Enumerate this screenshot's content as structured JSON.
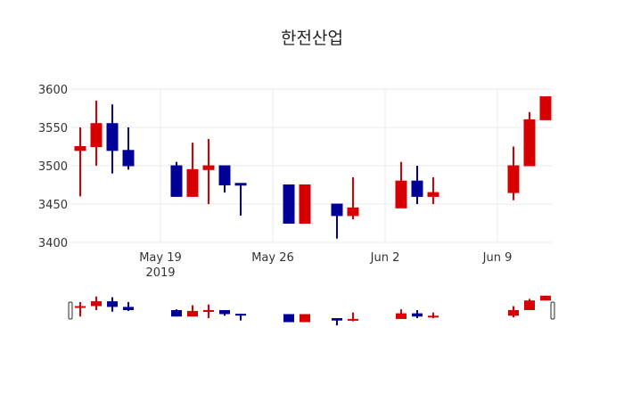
{
  "chart_data": {
    "type": "candlestick",
    "title": "한전산업",
    "xlabel": "",
    "ylabel": "",
    "ylim": [
      3400,
      3600
    ],
    "yticks": [
      3400,
      3450,
      3500,
      3550,
      3600
    ],
    "xticks": [
      {
        "date": "2019-05-19",
        "label": "May 19",
        "sublabel": "2019"
      },
      {
        "date": "2019-05-26",
        "label": "May 26",
        "sublabel": ""
      },
      {
        "date": "2019-06-02",
        "label": "Jun 2",
        "sublabel": ""
      },
      {
        "date": "2019-06-09",
        "label": "Jun 9",
        "sublabel": ""
      }
    ],
    "grid": true,
    "rangeslider": true,
    "increasing_color": "#d60000",
    "decreasing_color": "#000099",
    "candles": [
      {
        "date": "2019-05-14",
        "open": 3520,
        "high": 3550,
        "low": 3460,
        "close": 3525
      },
      {
        "date": "2019-05-15",
        "open": 3525,
        "high": 3585,
        "low": 3500,
        "close": 3555
      },
      {
        "date": "2019-05-16",
        "open": 3555,
        "high": 3580,
        "low": 3490,
        "close": 3520
      },
      {
        "date": "2019-05-17",
        "open": 3520,
        "high": 3550,
        "low": 3495,
        "close": 3500
      },
      {
        "date": "2019-05-20",
        "open": 3500,
        "high": 3505,
        "low": 3460,
        "close": 3460
      },
      {
        "date": "2019-05-21",
        "open": 3460,
        "high": 3530,
        "low": 3460,
        "close": 3495
      },
      {
        "date": "2019-05-22",
        "open": 3495,
        "high": 3535,
        "low": 3450,
        "close": 3500
      },
      {
        "date": "2019-05-23",
        "open": 3500,
        "high": 3500,
        "low": 3465,
        "close": 3475
      },
      {
        "date": "2019-05-24",
        "open": 3477,
        "high": 3477,
        "low": 3435,
        "close": 3475
      },
      {
        "date": "2019-05-27",
        "open": 3475,
        "high": 3475,
        "low": 3425,
        "close": 3425
      },
      {
        "date": "2019-05-28",
        "open": 3425,
        "high": 3475,
        "low": 3425,
        "close": 3475
      },
      {
        "date": "2019-05-30",
        "open": 3450,
        "high": 3450,
        "low": 3405,
        "close": 3435
      },
      {
        "date": "2019-05-31",
        "open": 3435,
        "high": 3485,
        "low": 3430,
        "close": 3445
      },
      {
        "date": "2019-06-03",
        "open": 3445,
        "high": 3505,
        "low": 3445,
        "close": 3480
      },
      {
        "date": "2019-06-04",
        "open": 3480,
        "high": 3500,
        "low": 3450,
        "close": 3460
      },
      {
        "date": "2019-06-05",
        "open": 3460,
        "high": 3485,
        "low": 3450,
        "close": 3465
      },
      {
        "date": "2019-06-10",
        "open": 3465,
        "high": 3525,
        "low": 3455,
        "close": 3500
      },
      {
        "date": "2019-06-11",
        "open": 3500,
        "high": 3570,
        "low": 3500,
        "close": 3560
      },
      {
        "date": "2019-06-12",
        "open": 3560,
        "high": 3590,
        "low": 3560,
        "close": 3590
      }
    ]
  }
}
